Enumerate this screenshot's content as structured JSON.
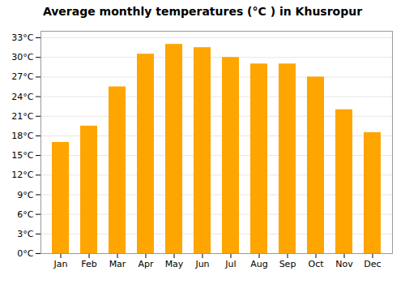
{
  "chart_data": {
    "type": "bar",
    "title": "Average monthly temperatures (°C ) in Khusropur",
    "categories": [
      "Jan",
      "Feb",
      "Mar",
      "Apr",
      "May",
      "Jun",
      "Jul",
      "Aug",
      "Sep",
      "Oct",
      "Nov",
      "Dec"
    ],
    "values": [
      17,
      19.5,
      25.5,
      30.5,
      32,
      31.5,
      30,
      29,
      29,
      27,
      22,
      18.5
    ],
    "color": "#FFA500",
    "ylim": [
      0,
      34
    ],
    "yticks": [
      {
        "value": 0,
        "label": "0°C"
      },
      {
        "value": 3,
        "label": "3°C"
      },
      {
        "value": 6,
        "label": "6°C"
      },
      {
        "value": 9,
        "label": "9°C"
      },
      {
        "value": 12,
        "label": "12°C"
      },
      {
        "value": 15,
        "label": "15°C"
      },
      {
        "value": 18,
        "label": "18°C"
      },
      {
        "value": 21,
        "label": "21°C"
      },
      {
        "value": 24,
        "label": "24°C"
      },
      {
        "value": 27,
        "label": "27°C"
      },
      {
        "value": 30,
        "label": "30°C"
      },
      {
        "value": 33,
        "label": "33°C"
      }
    ],
    "grid": true
  }
}
